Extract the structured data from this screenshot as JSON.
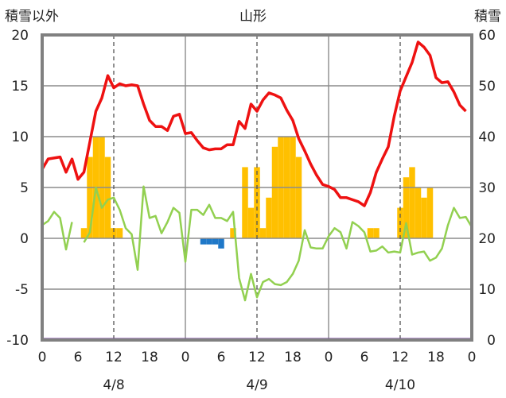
{
  "chart_data": {
    "type": "line",
    "title": "山形",
    "left_axis_label": "積雪以外",
    "right_axis_label": "積雪",
    "left_axis": {
      "min": -10,
      "max": 20,
      "ticks": [
        "20",
        "15",
        "10",
        "5",
        "0",
        "-5",
        "-10"
      ]
    },
    "right_axis": {
      "min": 0,
      "max": 60,
      "ticks": [
        "60",
        "50",
        "40",
        "30",
        "20",
        "10",
        "0"
      ]
    },
    "x_tick_labels": [
      "0",
      "6",
      "12",
      "18",
      "0",
      "6",
      "12",
      "18",
      "0",
      "6",
      "12",
      "18",
      "0"
    ],
    "x_tick_hours": [
      0,
      6,
      12,
      18,
      24,
      30,
      36,
      42,
      48,
      54,
      60,
      66,
      72
    ],
    "day_labels": [
      {
        "label": "4/8",
        "hour": 12
      },
      {
        "label": "4/9",
        "hour": 36
      },
      {
        "label": "4/10",
        "hour": 60
      }
    ],
    "grid": {
      "day_separators": [
        24,
        48
      ],
      "noon_dashed": [
        12,
        36,
        60
      ]
    },
    "colors": {
      "temperature": "#ee1111",
      "green_series": "#92d050",
      "precipitation": "#ffc000",
      "blue_bars": "#1f78c8",
      "snow_depth": "#7030a0",
      "frame": "#808080"
    },
    "temperature": [
      [
        0,
        6.8
      ],
      [
        1,
        7.8
      ],
      [
        2,
        7.9
      ],
      [
        3,
        8.0
      ],
      [
        4,
        6.5
      ],
      [
        5,
        7.8
      ],
      [
        6,
        5.8
      ],
      [
        7,
        6.5
      ],
      [
        8,
        9.5
      ],
      [
        9,
        12.5
      ],
      [
        10,
        13.8
      ],
      [
        11,
        16.0
      ],
      [
        12,
        14.8
      ],
      [
        13,
        15.2
      ],
      [
        14,
        15.0
      ],
      [
        15,
        15.1
      ],
      [
        16,
        15.0
      ],
      [
        17,
        13.2
      ],
      [
        18,
        11.6
      ],
      [
        19,
        11.0
      ],
      [
        20,
        11.0
      ],
      [
        21,
        10.6
      ],
      [
        22,
        12.0
      ],
      [
        23,
        12.2
      ],
      [
        24,
        10.3
      ],
      [
        25,
        10.4
      ],
      [
        26,
        9.6
      ],
      [
        27,
        8.9
      ],
      [
        28,
        8.7
      ],
      [
        29,
        8.8
      ],
      [
        30,
        8.8
      ],
      [
        31,
        9.2
      ],
      [
        32,
        9.2
      ],
      [
        33,
        11.5
      ],
      [
        34,
        10.8
      ],
      [
        35,
        13.2
      ],
      [
        36,
        12.5
      ],
      [
        37,
        13.6
      ],
      [
        38,
        14.3
      ],
      [
        39,
        14.1
      ],
      [
        40,
        13.8
      ],
      [
        41,
        12.6
      ],
      [
        42,
        11.6
      ],
      [
        43,
        9.8
      ],
      [
        44,
        8.6
      ],
      [
        45,
        7.3
      ],
      [
        46,
        6.2
      ],
      [
        47,
        5.3
      ],
      [
        48,
        5.1
      ],
      [
        49,
        4.8
      ],
      [
        50,
        4.0
      ],
      [
        51,
        4.0
      ],
      [
        52,
        3.8
      ],
      [
        53,
        3.6
      ],
      [
        54,
        3.2
      ],
      [
        55,
        4.5
      ],
      [
        56,
        6.5
      ],
      [
        57,
        7.8
      ],
      [
        58,
        9.0
      ],
      [
        59,
        12.0
      ],
      [
        60,
        14.5
      ],
      [
        61,
        15.9
      ],
      [
        62,
        17.3
      ],
      [
        63,
        19.3
      ],
      [
        64,
        18.8
      ],
      [
        65,
        18.0
      ],
      [
        66,
        15.8
      ],
      [
        67,
        15.3
      ],
      [
        68,
        15.4
      ],
      [
        69,
        14.4
      ],
      [
        70,
        13.1
      ],
      [
        71,
        12.5
      ]
    ],
    "green_series": [
      [
        [
          0,
          1.3
        ],
        [
          1,
          1.7
        ],
        [
          2,
          2.6
        ],
        [
          3,
          2.0
        ],
        [
          4,
          -1.1
        ],
        [
          5,
          1.6
        ]
      ],
      [
        [
          7,
          -0.4
        ],
        [
          8,
          0.6
        ],
        [
          9,
          5.0
        ],
        [
          10,
          3.0
        ],
        [
          11,
          3.8
        ],
        [
          12,
          4.0
        ],
        [
          13,
          2.8
        ],
        [
          14,
          1.0
        ],
        [
          15,
          0.4
        ],
        [
          16,
          -3.1
        ],
        [
          17,
          5.1
        ],
        [
          18,
          2.0
        ],
        [
          19,
          2.2
        ],
        [
          20,
          0.5
        ],
        [
          21,
          1.6
        ],
        [
          22,
          3.0
        ],
        [
          23,
          2.5
        ],
        [
          24,
          -2.3
        ],
        [
          25,
          2.8
        ],
        [
          26,
          2.8
        ],
        [
          27,
          2.3
        ],
        [
          28,
          3.3
        ],
        [
          29,
          2.0
        ],
        [
          30,
          2.0
        ],
        [
          31,
          1.7
        ],
        [
          32,
          2.6
        ],
        [
          33,
          -3.9
        ],
        [
          34,
          -6.1
        ],
        [
          35,
          -3.5
        ],
        [
          36,
          -5.8
        ],
        [
          37,
          -4.3
        ],
        [
          38,
          -4.0
        ],
        [
          39,
          -4.5
        ],
        [
          40,
          -4.6
        ],
        [
          41,
          -4.3
        ],
        [
          42,
          -3.5
        ],
        [
          43,
          -2.2
        ],
        [
          44,
          0.8
        ],
        [
          45,
          -0.9
        ],
        [
          46,
          -1.0
        ],
        [
          47,
          -1.0
        ],
        [
          48,
          0.2
        ],
        [
          49,
          1.0
        ],
        [
          50,
          0.6
        ],
        [
          51,
          -1.0
        ],
        [
          52,
          1.6
        ],
        [
          53,
          1.2
        ],
        [
          54,
          0.6
        ],
        [
          55,
          -1.3
        ],
        [
          56,
          -1.2
        ],
        [
          57,
          -0.8
        ],
        [
          58,
          -1.4
        ],
        [
          59,
          -1.3
        ],
        [
          60,
          -1.4
        ],
        [
          61,
          1.5
        ],
        [
          62,
          -1.6
        ],
        [
          63,
          -1.4
        ],
        [
          64,
          -1.3
        ],
        [
          65,
          -2.2
        ],
        [
          66,
          -1.9
        ],
        [
          67,
          -1.0
        ],
        [
          68,
          1.3
        ],
        [
          69,
          3.0
        ],
        [
          70,
          2.0
        ],
        [
          71,
          2.1
        ],
        [
          72,
          1.1
        ]
      ]
    ],
    "precipitation_bars": [
      [
        7,
        1
      ],
      [
        8,
        8
      ],
      [
        9,
        10
      ],
      [
        10,
        10
      ],
      [
        11,
        8
      ],
      [
        12,
        1
      ],
      [
        13,
        1
      ],
      [
        32,
        1
      ],
      [
        34,
        7
      ],
      [
        35,
        3
      ],
      [
        36,
        7
      ],
      [
        37,
        1
      ],
      [
        38,
        4
      ],
      [
        39,
        9
      ],
      [
        40,
        10
      ],
      [
        41,
        10
      ],
      [
        42,
        10
      ],
      [
        43,
        8
      ],
      [
        55,
        1
      ],
      [
        56,
        1
      ],
      [
        60,
        3
      ],
      [
        61,
        6
      ],
      [
        62,
        7
      ],
      [
        63,
        5
      ],
      [
        64,
        4
      ],
      [
        65,
        5
      ]
    ],
    "blue_bars": [
      [
        27,
        -0.6
      ],
      [
        28,
        -0.6
      ],
      [
        29,
        -0.6
      ],
      [
        30,
        -1.0
      ]
    ],
    "snow_depth": [
      [
        0,
        0
      ],
      [
        72,
        0
      ]
    ]
  }
}
